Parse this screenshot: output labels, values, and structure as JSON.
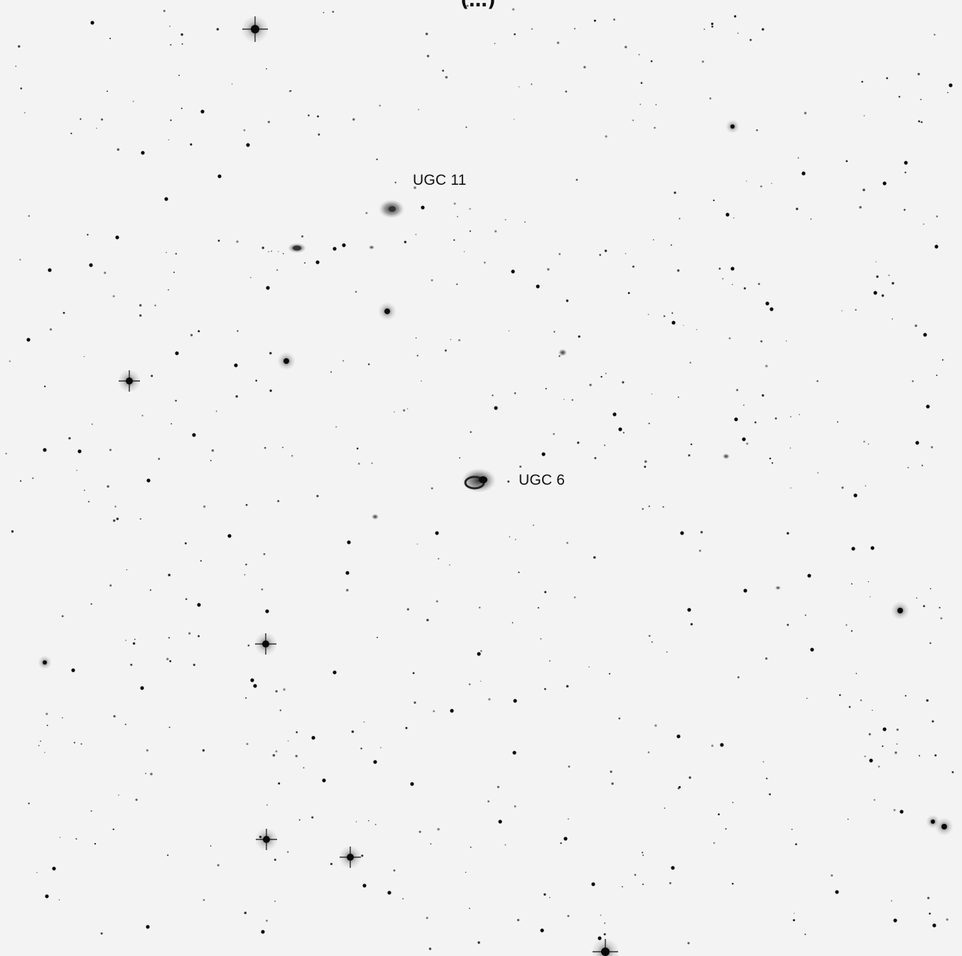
{
  "labels": {
    "galaxy_1": "UGC 11",
    "galaxy_2": "UGC 6"
  },
  "colors": {
    "sky_background": "#f3f3f3",
    "star": "#0a0a0a",
    "galaxy": "#2a2a2a",
    "label_text": "#111111"
  }
}
